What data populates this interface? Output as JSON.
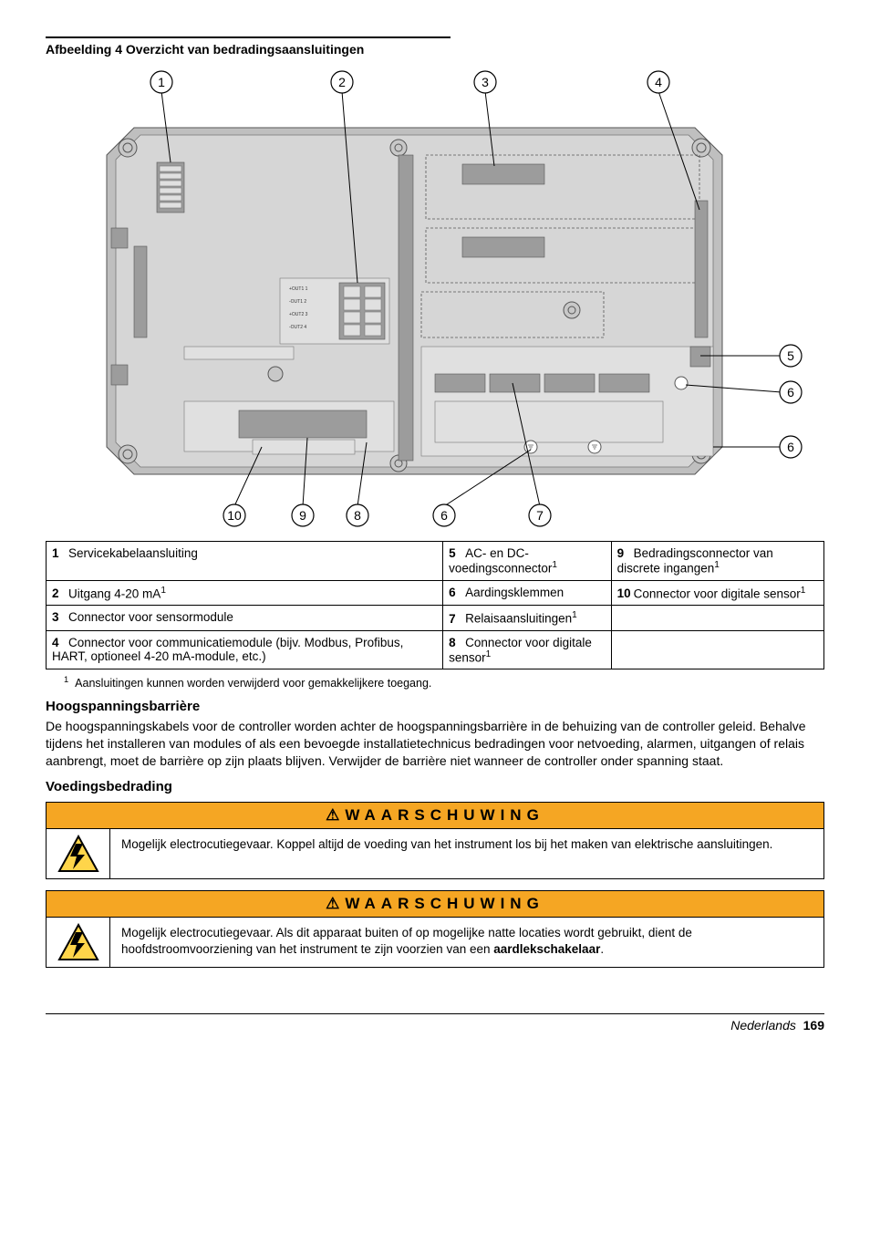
{
  "figure": {
    "caption": "Afbeelding 4  Overzicht van bedradingsaansluitingen",
    "callouts_top": [
      "1",
      "2",
      "3",
      "4"
    ],
    "callouts_right": [
      "5",
      "6",
      "6"
    ],
    "callouts_bottom": [
      "10",
      "9",
      "8",
      "6",
      "7"
    ]
  },
  "legend": {
    "rows": [
      {
        "c1n": "1",
        "c1": "Servicekabelaansluiting",
        "c2n": "5",
        "c2": "AC- en DC-voedingsconnector",
        "c2sup": "1",
        "c3n": "9",
        "c3": "Bedradingsconnector van discrete ingangen",
        "c3sup": "1"
      },
      {
        "c1n": "2",
        "c1": "Uitgang 4-20 mA",
        "c1sup": "1",
        "c2n": "6",
        "c2": "Aardingsklemmen",
        "c3n": "10",
        "c3": "Connector voor digitale sensor",
        "c3sup": "1"
      },
      {
        "c1n": "3",
        "c1": "Connector voor sensormodule",
        "c2n": "7",
        "c2": "Relaisaansluitingen",
        "c2sup": "1",
        "c3n": "",
        "c3": ""
      },
      {
        "c1n": "4",
        "c1": "Connector voor communicatiemodule (bijv. Modbus, Profibus, HART, optioneel 4-20 mA-module, etc.)",
        "c2n": "8",
        "c2": "Connector voor digitale sensor",
        "c2sup": "1",
        "c3n": "",
        "c3": ""
      }
    ]
  },
  "footnote": {
    "num": "1",
    "text": "Aansluitingen kunnen worden verwijderd voor gemakkelijkere toegang."
  },
  "section1": {
    "title": "Hoogspanningsbarrière",
    "body": "De hoogspanningskabels voor de controller worden achter de hoogspanningsbarrière in de behuizing van de controller geleid. Behalve tijdens het installeren van modules of als een bevoegde installatietechnicus bedradingen voor netvoeding, alarmen, uitgangen of relais aanbrengt, moet de barrière op zijn plaats blijven. Verwijder de barrière niet wanneer de controller onder spanning staat."
  },
  "section2": {
    "title": "Voedingsbedrading"
  },
  "warnings": {
    "label": "WAARSCHUWING",
    "w1": "Mogelijk electrocutiegevaar. Koppel altijd de voeding van het instrument los bij het maken van elektrische aansluitingen.",
    "w2_a": "Mogelijk electrocutiegevaar. Als dit apparaat buiten of op mogelijke natte locaties wordt gebruikt, dient de hoofdstroomvoorziening van het instrument te zijn voorzien van een ",
    "w2_b": "aardlekschakelaar",
    "w2_c": "."
  },
  "footer": {
    "lang": "Nederlands",
    "page": "169"
  },
  "colors": {
    "warning_bg": "#f5a623",
    "pcb": "#bfbfbf",
    "pcb_inner": "#d6d6d6"
  }
}
